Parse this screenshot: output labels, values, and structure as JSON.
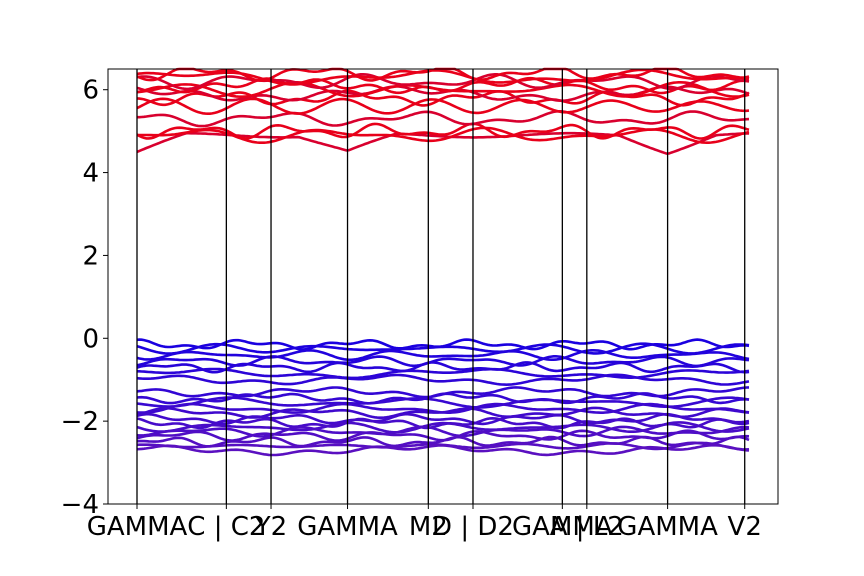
{
  "chart_data": {
    "type": "line",
    "title": "",
    "xlabel": "",
    "ylabel": "",
    "ylim": [
      -4,
      6.5
    ],
    "yticks": [
      -4,
      -2,
      0,
      2,
      4,
      6
    ],
    "ytick_labels": [
      "−4",
      "−2",
      "0",
      "2",
      "4",
      "6"
    ],
    "x_range": [
      0,
      1
    ],
    "high_symmetry_points": [
      {
        "x": 0.0,
        "label": "GAMMA"
      },
      {
        "x": 0.146,
        "label": "C | C2"
      },
      {
        "x": 0.219,
        "label": "Y2"
      },
      {
        "x": 0.344,
        "label": "GAMMA"
      },
      {
        "x": 0.476,
        "label": "M2"
      },
      {
        "x": 0.549,
        "label": "D | D2"
      },
      {
        "x": 0.695,
        "label": "GAMMA"
      },
      {
        "x": 0.735,
        "label": "A | L2"
      },
      {
        "x": 0.867,
        "label": "GAMMA"
      },
      {
        "x": 0.993,
        "label": "V2"
      }
    ],
    "colors": {
      "conduction": "#e8001a",
      "valence_top": "#1a00e0",
      "valence_bottom": "#5a10c0",
      "vline": "#000000"
    },
    "conduction_bands": {
      "count": 12,
      "min_energy": 4.5,
      "max_energy": 6.5,
      "gamma_min": 4.5,
      "approx_levels": [
        4.5,
        4.9,
        5.0,
        5.3,
        5.6,
        5.8,
        5.9,
        6.0,
        6.1,
        6.2,
        6.3,
        6.4
      ]
    },
    "valence_bands": {
      "count": 20,
      "max_energy": -0.1,
      "min_energy": -2.75,
      "approx_levels": [
        -0.15,
        -0.25,
        -0.4,
        -0.55,
        -0.7,
        -0.85,
        -1.0,
        -1.3,
        -1.45,
        -1.55,
        -1.7,
        -1.8,
        -1.95,
        -2.05,
        -2.15,
        -2.25,
        -2.35,
        -2.5,
        -2.6,
        -2.7
      ]
    }
  }
}
